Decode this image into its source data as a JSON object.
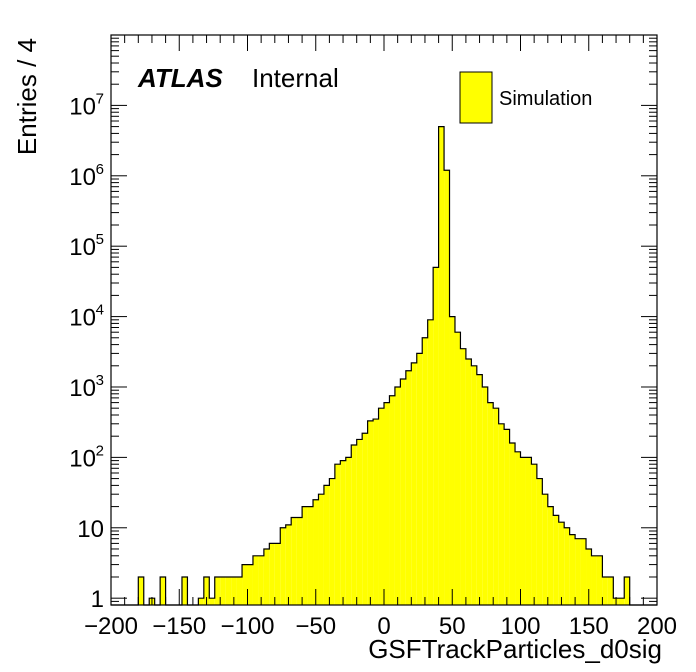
{
  "chart_data": {
    "type": "bar",
    "histogram": true,
    "xlabel": "GSFTrackParticles_d0sig",
    "ylabel": "Entries / 4",
    "xlim": [
      -200,
      200
    ],
    "ylim": [
      0.8,
      100000000.0
    ],
    "yscale": "log",
    "bin_width": 4,
    "x_tick_labels": [
      "−200",
      "−150",
      "−100",
      "−50",
      "0",
      "50",
      "100",
      "150",
      "200"
    ],
    "y_tick_labels": [
      {
        "base": "1",
        "exp": ""
      },
      {
        "base": "10",
        "exp": ""
      },
      {
        "base": "10",
        "exp": "2"
      },
      {
        "base": "10",
        "exp": "3"
      },
      {
        "base": "10",
        "exp": "4"
      },
      {
        "base": "10",
        "exp": "5"
      },
      {
        "base": "10",
        "exp": "6"
      },
      {
        "base": "10",
        "exp": "7"
      }
    ],
    "series": [
      {
        "name": "Simulation",
        "color": "#ffff00",
        "bin_edges_start": -200,
        "values": [
          0,
          0,
          0,
          0,
          0,
          2,
          0,
          1,
          0,
          2,
          0,
          0,
          0,
          2,
          0,
          0,
          1,
          2,
          1,
          2,
          2,
          2,
          2,
          2,
          3,
          3,
          4,
          4,
          5,
          6,
          6,
          10,
          11,
          14,
          14,
          20,
          20,
          25,
          30,
          40,
          50,
          80,
          90,
          100,
          150,
          180,
          220,
          330,
          350,
          500,
          600,
          750,
          1000,
          1300,
          1700,
          2200,
          3000,
          5000,
          9000,
          50000,
          5000000,
          1200000,
          10000,
          6000,
          3500,
          2500,
          2000,
          1500,
          1000,
          600,
          500,
          300,
          250,
          160,
          120,
          100,
          100,
          80,
          50,
          30,
          20,
          15,
          12,
          10,
          8,
          7,
          7,
          5,
          4,
          4,
          2,
          2,
          1,
          1,
          2,
          0,
          0,
          0,
          0,
          0
        ]
      }
    ],
    "legend_position": "top-right"
  },
  "annotation": {
    "atlas": "ATLAS",
    "internal": "Internal"
  },
  "legend": {
    "entries": [
      "Simulation"
    ]
  }
}
